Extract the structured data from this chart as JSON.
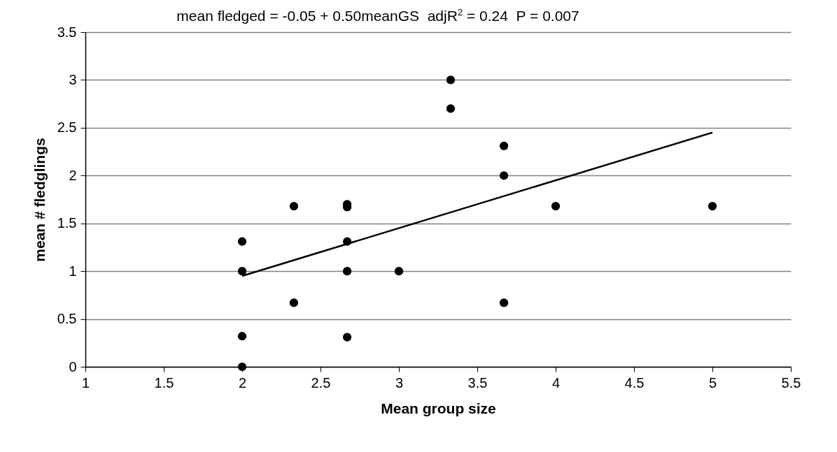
{
  "chart_data": {
    "type": "scatter",
    "title": "mean fledged = -0.05 + 0.50meanGS  adjR$^{2}$ = 0.24  P = 0.007",
    "xlabel": "Mean group size",
    "ylabel": "mean # fledglings",
    "xlim": [
      1,
      5.5
    ],
    "xticks": [
      1,
      1.5,
      2,
      2.5,
      3,
      3.5,
      4,
      4.5,
      5,
      5.5
    ],
    "ylim": [
      0,
      3.5
    ],
    "yticks": [
      0,
      0.5,
      1,
      1.5,
      2,
      2.5,
      3,
      3.5
    ],
    "grid": "y",
    "marker": "circle",
    "series": [
      {
        "color": "#000000",
        "x": [
          2,
          2,
          2,
          2,
          2.33,
          2.33,
          2.67,
          2.67,
          2.67,
          2.67,
          2.67,
          3,
          3.33,
          3.33,
          3.67,
          3.67,
          3.67,
          4,
          5
        ],
        "values": [
          0,
          0.32,
          1,
          1.31,
          1.68,
          0.67,
          1.67,
          1.7,
          1.31,
          1,
          0.31,
          1,
          3,
          2.7,
          2.31,
          2,
          0.67,
          1.68,
          1.68
        ]
      },
      {
        "type": "line",
        "color": "#000000",
        "marker": "none",
        "x": [
          2,
          5
        ],
        "values": [
          0.95,
          2.45
        ]
      }
    ]
  }
}
